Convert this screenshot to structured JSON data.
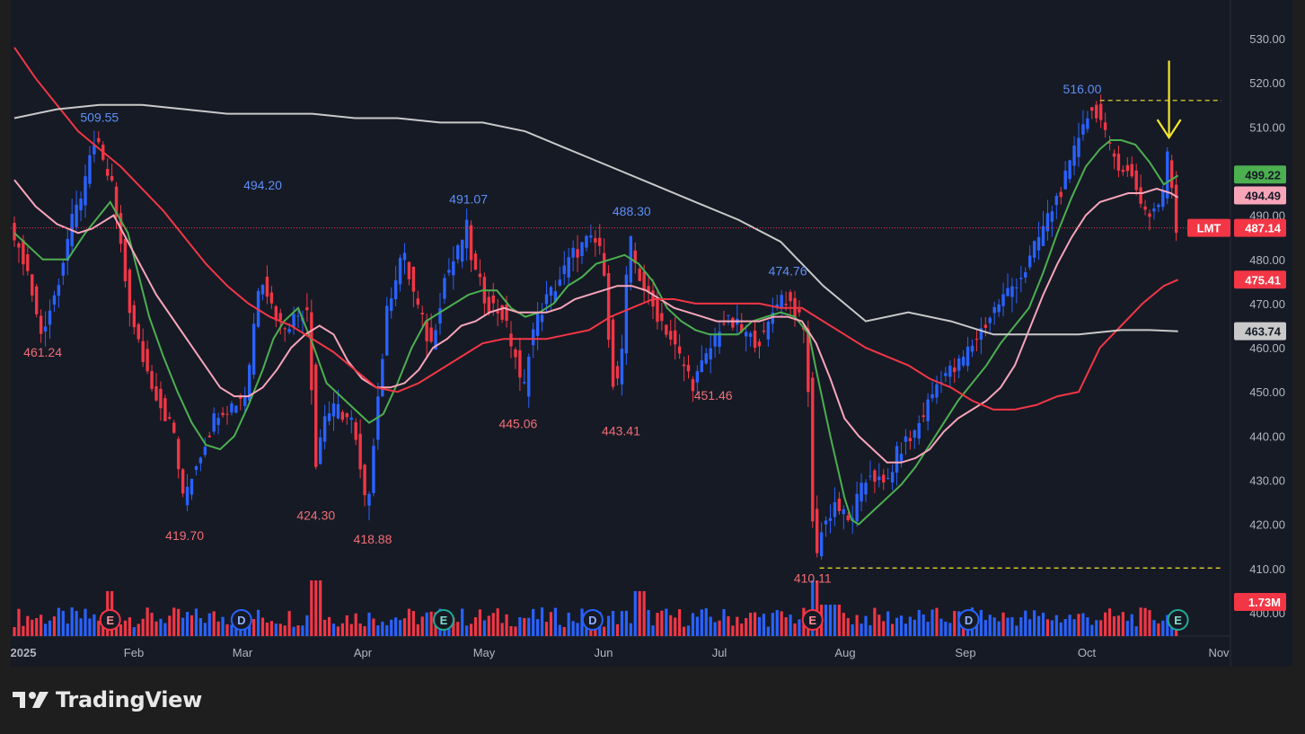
{
  "brand": {
    "name": "TradingView"
  },
  "colors": {
    "background": "#161a25",
    "up": "#2962ff",
    "down": "#f23645",
    "ma_green": "#4caf50",
    "ma_pink": "#f8a5b9",
    "ma_red": "#f23645",
    "ma_gray": "#c9c9c9",
    "annotation_yellow": "#f5e72b",
    "text": "#b2b5be"
  },
  "chart_data": {
    "type": "candlestick",
    "symbol": "LMT",
    "last_price": "487.14",
    "y_ticks": [
      "530.00",
      "520.00",
      "510.00",
      "500.00",
      "490.00",
      "480.00",
      "470.00",
      "460.00",
      "450.00",
      "440.00",
      "430.00",
      "420.00",
      "410.00",
      "400.00"
    ],
    "x_ticks": [
      "2025",
      "Feb",
      "Mar",
      "Apr",
      "May",
      "Jun",
      "Jul",
      "Aug",
      "Sep",
      "Oct",
      "Nov"
    ],
    "ylim": [
      398,
      538
    ],
    "price_tags": [
      {
        "label": "499.22",
        "value": 499.22,
        "color": "#4caf50",
        "text_color": "#161a25"
      },
      {
        "label": "494.49",
        "value": 494.49,
        "color": "#f8a5b9",
        "text_color": "#161a25"
      },
      {
        "label": "487.14",
        "value": 487.14,
        "color": "#f23645",
        "text_color": "#ffffff",
        "symbol": true
      },
      {
        "label": "475.41",
        "value": 475.41,
        "color": "#f23645",
        "text_color": "#ffffff"
      },
      {
        "label": "463.74",
        "value": 463.74,
        "color": "#c9c9c9",
        "text_color": "#161a25"
      },
      {
        "label": "1.73M",
        "value": 402.5,
        "color": "#f23645",
        "text_color": "#ffffff"
      }
    ],
    "annotations": [
      {
        "text": "509.55",
        "date": 24,
        "price": 509.55,
        "kind": "high"
      },
      {
        "text": "494.20",
        "date": 70,
        "price": 494.2,
        "kind": "high"
      },
      {
        "text": "491.07",
        "date": 128,
        "price": 491.07,
        "kind": "high"
      },
      {
        "text": "488.30",
        "date": 174,
        "price": 488.3,
        "kind": "high"
      },
      {
        "text": "474.76",
        "date": 218,
        "price": 474.76,
        "kind": "high"
      },
      {
        "text": "516.00",
        "date": 301,
        "price": 516.0,
        "kind": "high"
      },
      {
        "text": "461.24",
        "date": 8,
        "price": 461.24,
        "kind": "low"
      },
      {
        "text": "419.70",
        "date": 48,
        "price": 419.7,
        "kind": "low"
      },
      {
        "text": "424.30",
        "date": 85,
        "price": 424.3,
        "kind": "low"
      },
      {
        "text": "418.88",
        "date": 101,
        "price": 418.88,
        "kind": "low"
      },
      {
        "text": "445.06",
        "date": 142,
        "price": 445.06,
        "kind": "low"
      },
      {
        "text": "443.41",
        "date": 171,
        "price": 443.41,
        "kind": "low"
      },
      {
        "text": "451.46",
        "date": 197,
        "price": 451.46,
        "kind": "low"
      },
      {
        "text": "410.11",
        "date": 225,
        "price": 410.11,
        "kind": "low"
      }
    ],
    "events": [
      {
        "type": "E",
        "color": "#f23645",
        "date": 27
      },
      {
        "type": "D",
        "color": "#2962ff",
        "date": 64
      },
      {
        "type": "E",
        "color": "#22ab94",
        "date": 121
      },
      {
        "type": "D",
        "color": "#2962ff",
        "date": 163
      },
      {
        "type": "E",
        "color": "#f23645",
        "date": 225
      },
      {
        "type": "D",
        "color": "#2962ff",
        "date": 269
      },
      {
        "type": "E",
        "color": "#22ab94",
        "date": 328
      }
    ],
    "dashed_levels": [
      {
        "price": 516.0,
        "from_date": 306,
        "color": "#f5e72b"
      },
      {
        "price": 410.11,
        "from_date": 227,
        "color": "#f5e72b"
      }
    ],
    "arrow": {
      "date": 328,
      "from_price": 524,
      "to_price": 508,
      "color": "#f5e72b"
    },
    "series": [
      {
        "kind": "ma",
        "color": "#4caf50",
        "points": [
          [
            0,
            486
          ],
          [
            8,
            480
          ],
          [
            15,
            480
          ],
          [
            20,
            486
          ],
          [
            24,
            490
          ],
          [
            27,
            493
          ],
          [
            32,
            486
          ],
          [
            38,
            467
          ],
          [
            42,
            458
          ],
          [
            46,
            450
          ],
          [
            50,
            443
          ],
          [
            54,
            438
          ],
          [
            58,
            437
          ],
          [
            62,
            440
          ],
          [
            66,
            447
          ],
          [
            70,
            455
          ],
          [
            73,
            462
          ],
          [
            76,
            466
          ],
          [
            80,
            469
          ],
          [
            84,
            461
          ],
          [
            88,
            452
          ],
          [
            92,
            449
          ],
          [
            96,
            446
          ],
          [
            100,
            443
          ],
          [
            104,
            445
          ],
          [
            108,
            452
          ],
          [
            112,
            460
          ],
          [
            116,
            466
          ],
          [
            120,
            468
          ],
          [
            124,
            470
          ],
          [
            128,
            472
          ],
          [
            132,
            473
          ],
          [
            136,
            473
          ],
          [
            140,
            469
          ],
          [
            144,
            467
          ],
          [
            148,
            468
          ],
          [
            152,
            470
          ],
          [
            156,
            474
          ],
          [
            160,
            476
          ],
          [
            164,
            479
          ],
          [
            168,
            480
          ],
          [
            172,
            481
          ],
          [
            176,
            479
          ],
          [
            180,
            475
          ],
          [
            184,
            469
          ],
          [
            188,
            466
          ],
          [
            192,
            464
          ],
          [
            196,
            463
          ],
          [
            200,
            463
          ],
          [
            204,
            463
          ],
          [
            208,
            466
          ],
          [
            212,
            467
          ],
          [
            216,
            468
          ],
          [
            220,
            467
          ],
          [
            224,
            463
          ],
          [
            226,
            455
          ],
          [
            230,
            440
          ],
          [
            234,
            426
          ],
          [
            236,
            421
          ],
          [
            238,
            420
          ],
          [
            242,
            423
          ],
          [
            246,
            426
          ],
          [
            250,
            429
          ],
          [
            254,
            433
          ],
          [
            258,
            438
          ],
          [
            262,
            443
          ],
          [
            266,
            448
          ],
          [
            270,
            452
          ],
          [
            274,
            456
          ],
          [
            278,
            461
          ],
          [
            282,
            465
          ],
          [
            286,
            469
          ],
          [
            290,
            477
          ],
          [
            294,
            486
          ],
          [
            298,
            494
          ],
          [
            302,
            501
          ],
          [
            306,
            505
          ],
          [
            309,
            507
          ],
          [
            312,
            507
          ],
          [
            316,
            506
          ],
          [
            320,
            502
          ],
          [
            324,
            497
          ],
          [
            328,
            499
          ]
        ]
      },
      {
        "kind": "ma",
        "color": "#f8a5b9",
        "points": [
          [
            0,
            498
          ],
          [
            6,
            492
          ],
          [
            12,
            488
          ],
          [
            18,
            486
          ],
          [
            22,
            487
          ],
          [
            28,
            490
          ],
          [
            34,
            481
          ],
          [
            40,
            472
          ],
          [
            46,
            465
          ],
          [
            52,
            458
          ],
          [
            58,
            451
          ],
          [
            62,
            449
          ],
          [
            66,
            449
          ],
          [
            70,
            451
          ],
          [
            74,
            455
          ],
          [
            78,
            460
          ],
          [
            82,
            463
          ],
          [
            86,
            465
          ],
          [
            90,
            463
          ],
          [
            94,
            457
          ],
          [
            98,
            453
          ],
          [
            102,
            451
          ],
          [
            106,
            451
          ],
          [
            110,
            452
          ],
          [
            114,
            455
          ],
          [
            118,
            460
          ],
          [
            122,
            462
          ],
          [
            126,
            465
          ],
          [
            130,
            466
          ],
          [
            134,
            468
          ],
          [
            138,
            469
          ],
          [
            142,
            468
          ],
          [
            146,
            468
          ],
          [
            150,
            468
          ],
          [
            154,
            469
          ],
          [
            158,
            471
          ],
          [
            162,
            472
          ],
          [
            166,
            473
          ],
          [
            170,
            474
          ],
          [
            174,
            474
          ],
          [
            178,
            473
          ],
          [
            182,
            471
          ],
          [
            186,
            469
          ],
          [
            190,
            468
          ],
          [
            194,
            467
          ],
          [
            198,
            466
          ],
          [
            202,
            466
          ],
          [
            206,
            466
          ],
          [
            210,
            466
          ],
          [
            214,
            467
          ],
          [
            218,
            467
          ],
          [
            222,
            466
          ],
          [
            226,
            461
          ],
          [
            230,
            453
          ],
          [
            234,
            444
          ],
          [
            238,
            440
          ],
          [
            242,
            437
          ],
          [
            246,
            434
          ],
          [
            250,
            434
          ],
          [
            254,
            435
          ],
          [
            258,
            437
          ],
          [
            262,
            441
          ],
          [
            266,
            444
          ],
          [
            270,
            446
          ],
          [
            274,
            448
          ],
          [
            278,
            451
          ],
          [
            282,
            456
          ],
          [
            286,
            464
          ],
          [
            290,
            472
          ],
          [
            294,
            479
          ],
          [
            298,
            485
          ],
          [
            302,
            490
          ],
          [
            306,
            493
          ],
          [
            310,
            494
          ],
          [
            314,
            495
          ],
          [
            318,
            495
          ],
          [
            322,
            496
          ],
          [
            326,
            495
          ],
          [
            328,
            494
          ]
        ]
      },
      {
        "kind": "ma",
        "color": "#f23645",
        "points": [
          [
            0,
            528
          ],
          [
            6,
            521
          ],
          [
            12,
            515
          ],
          [
            18,
            509
          ],
          [
            24,
            505
          ],
          [
            30,
            501
          ],
          [
            36,
            496
          ],
          [
            42,
            491
          ],
          [
            48,
            485
          ],
          [
            54,
            479
          ],
          [
            60,
            474
          ],
          [
            66,
            470
          ],
          [
            72,
            467
          ],
          [
            78,
            465
          ],
          [
            84,
            462
          ],
          [
            90,
            459
          ],
          [
            96,
            455
          ],
          [
            102,
            451
          ],
          [
            108,
            450
          ],
          [
            114,
            452
          ],
          [
            120,
            455
          ],
          [
            126,
            458
          ],
          [
            132,
            461
          ],
          [
            138,
            462
          ],
          [
            144,
            462
          ],
          [
            150,
            462
          ],
          [
            156,
            463
          ],
          [
            162,
            464
          ],
          [
            168,
            467
          ],
          [
            174,
            469
          ],
          [
            180,
            471
          ],
          [
            186,
            471
          ],
          [
            192,
            470
          ],
          [
            198,
            470
          ],
          [
            204,
            470
          ],
          [
            210,
            470
          ],
          [
            216,
            469
          ],
          [
            222,
            469
          ],
          [
            228,
            466
          ],
          [
            234,
            463
          ],
          [
            240,
            460
          ],
          [
            246,
            458
          ],
          [
            252,
            456
          ],
          [
            258,
            453
          ],
          [
            264,
            451
          ],
          [
            270,
            448
          ],
          [
            276,
            446
          ],
          [
            282,
            446
          ],
          [
            288,
            447
          ],
          [
            294,
            449
          ],
          [
            300,
            450
          ],
          [
            306,
            460
          ],
          [
            312,
            465
          ],
          [
            318,
            470
          ],
          [
            324,
            474
          ],
          [
            328,
            475.41
          ]
        ]
      },
      {
        "kind": "ma",
        "color": "#c9c9c9",
        "points": [
          [
            0,
            512
          ],
          [
            12,
            514
          ],
          [
            24,
            515
          ],
          [
            36,
            515
          ],
          [
            48,
            514
          ],
          [
            60,
            513
          ],
          [
            72,
            513
          ],
          [
            84,
            513
          ],
          [
            96,
            512
          ],
          [
            108,
            512
          ],
          [
            120,
            511
          ],
          [
            132,
            511
          ],
          [
            144,
            509
          ],
          [
            156,
            505
          ],
          [
            168,
            501
          ],
          [
            180,
            497
          ],
          [
            192,
            493
          ],
          [
            204,
            489
          ],
          [
            216,
            484
          ],
          [
            228,
            474
          ],
          [
            240,
            466
          ],
          [
            252,
            468
          ],
          [
            264,
            466
          ],
          [
            276,
            463
          ],
          [
            288,
            463
          ],
          [
            300,
            463
          ],
          [
            312,
            464
          ],
          [
            320,
            464
          ],
          [
            328,
            463.74
          ]
        ]
      }
    ]
  }
}
